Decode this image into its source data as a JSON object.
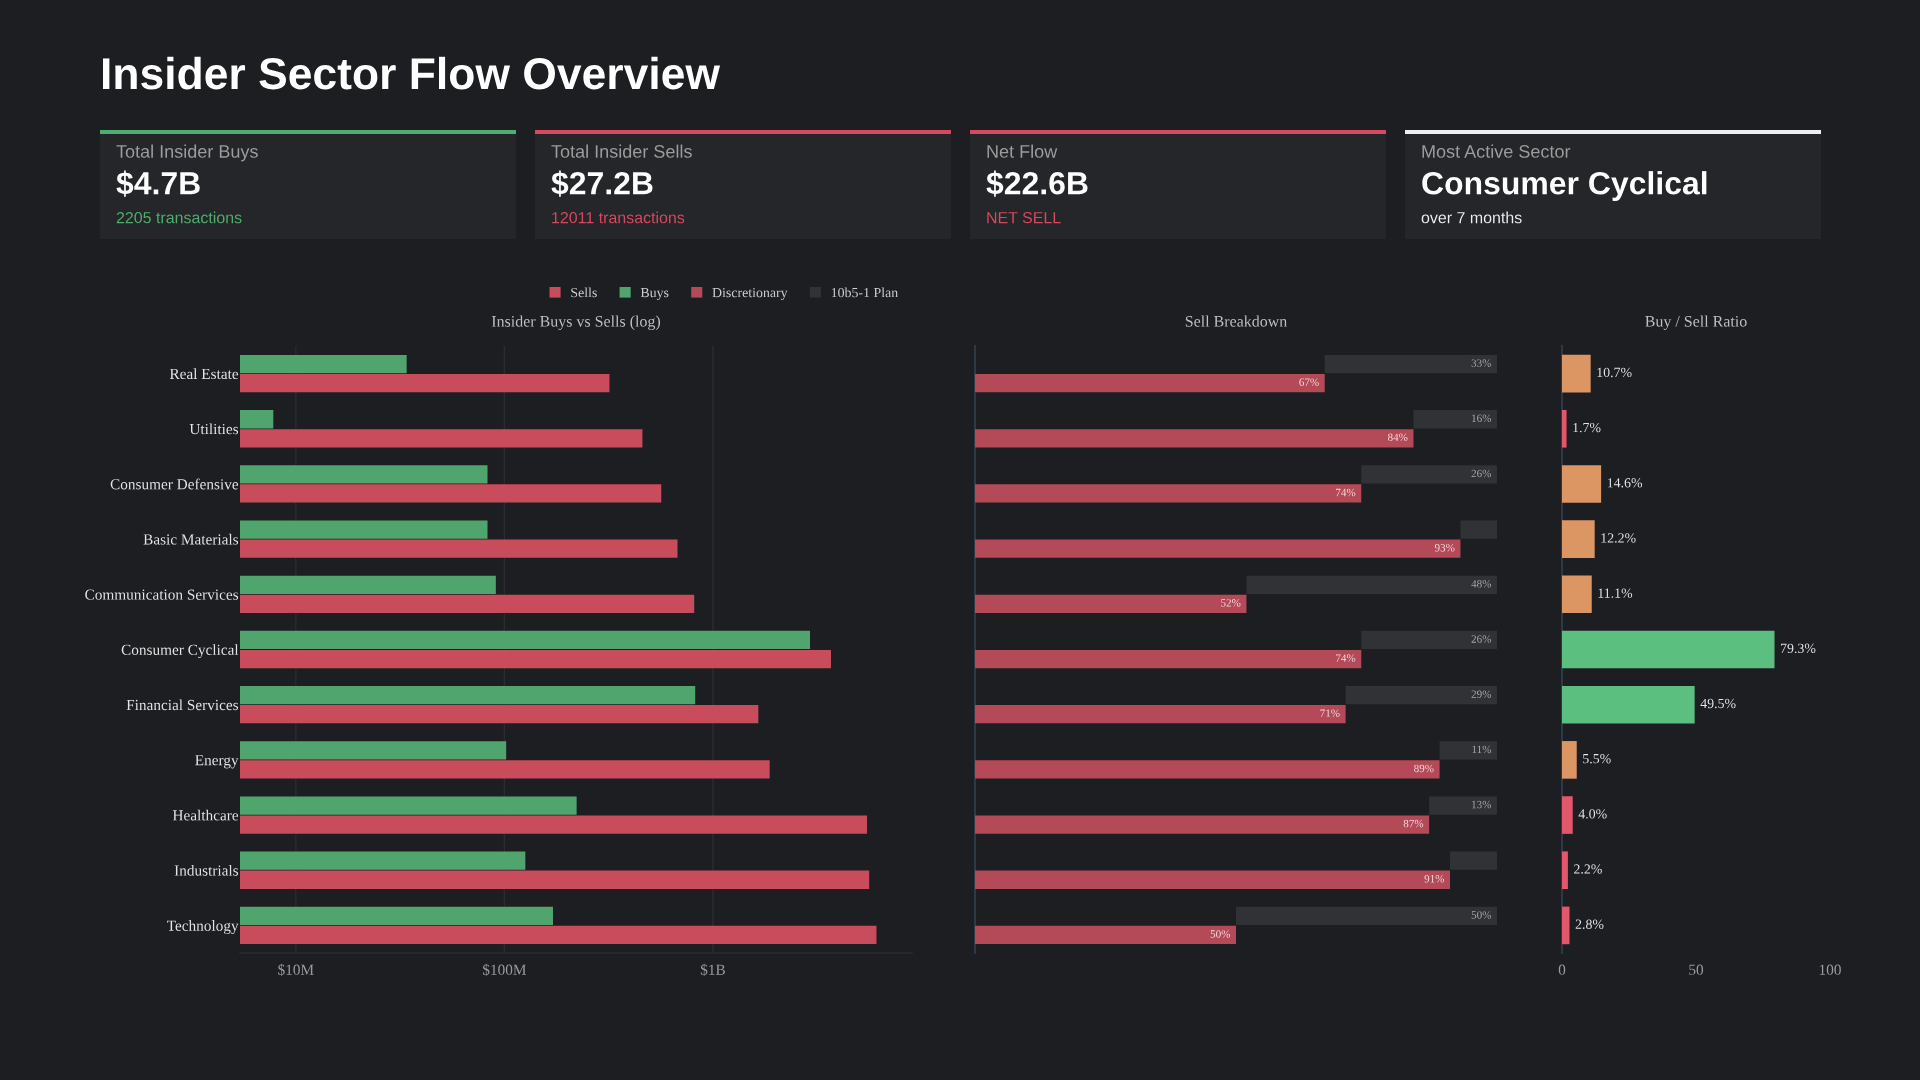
{
  "chart_data": [
    {
      "type": "other",
      "title": "Insider Sector Flow Overview"
    },
    {
      "type": "other",
      "title": "Total Insider Buys",
      "annotations": [
        "$4.7B",
        "2205 transactions"
      ],
      "color": "#4fae6e"
    },
    {
      "type": "other",
      "title": "Total Insider Sells",
      "annotations": [
        "$27.2B",
        "12011 transactions"
      ],
      "color": "#d8485e"
    },
    {
      "type": "other",
      "title": "Net Flow",
      "annotations": [
        "$22.6B",
        "NET SELL"
      ],
      "color": "#d8485e"
    },
    {
      "type": "other",
      "title": "Most Active Sector",
      "annotations": [
        "Consumer Cyclical",
        "over 7 months"
      ],
      "color": "#eeeeee"
    },
    {
      "type": "bar",
      "orientation": "horizontal",
      "title": "Insider Buys vs Sells (log)",
      "categories": [
        "Real Estate",
        "Utilities",
        "Consumer Defensive",
        "Basic Materials",
        "Communication Services",
        "Consumer Cyclical",
        "Financial Services",
        "Energy",
        "Healthcare",
        "Industrials",
        "Technology"
      ],
      "series": [
        {
          "name": "Sells",
          "color": "#c94c5c",
          "values": [
            319000000,
            459000000,
            565000000,
            676000000,
            813000000,
            3680000000,
            1650000000,
            1870000000,
            5480000000,
            5610000000,
            6080000000
          ]
        },
        {
          "name": "Buys",
          "color": "#50a56f",
          "values": [
            34000000,
            7800000,
            83000000,
            83000000,
            91000000,
            2920000000,
            822000000,
            102000000,
            222000000,
            126000000,
            171000000
          ]
        }
      ],
      "log": "x",
      "xlim": [
        5400000,
        9000000000
      ],
      "xticks": [
        {
          "value": 10000000,
          "label": "$10M"
        },
        {
          "value": 100000000,
          "label": "$100M"
        },
        {
          "value": 1000000000,
          "label": "$1B"
        }
      ],
      "grid": "x",
      "legend": "top"
    },
    {
      "type": "bar",
      "orientation": "horizontal",
      "stacked": true,
      "title": "Sell Breakdown",
      "categories": [
        null,
        null,
        null,
        null,
        null,
        null,
        null,
        null,
        null,
        null,
        null
      ],
      "series": [
        {
          "name": "Discretionary",
          "color": "#b44957",
          "values": [
            67,
            84,
            74,
            93,
            52,
            74,
            71,
            89,
            87,
            91,
            50
          ],
          "value_labels": [
            "67%",
            "84%",
            "74%",
            "93%",
            "52%",
            "74%",
            "71%",
            "89%",
            "87%",
            "91%",
            "50%"
          ]
        },
        {
          "name": "10b5-1 Plan",
          "color": "#313236",
          "values": [
            33,
            16,
            26,
            7,
            48,
            26,
            29,
            11,
            13,
            9,
            50
          ],
          "value_labels": [
            "33%",
            "16%",
            "26%",
            null,
            "48%",
            "26%",
            "29%",
            "11%",
            "13%",
            null,
            "50%"
          ]
        }
      ],
      "tick_labels": false,
      "legend": "top"
    },
    {
      "type": "bar",
      "orientation": "horizontal",
      "title": "Buy / Sell Ratio",
      "categories": [
        null,
        null,
        null,
        null,
        null,
        null,
        null,
        null,
        null,
        null,
        null
      ],
      "values": [
        10.7,
        1.7,
        14.6,
        12.2,
        11.1,
        79.3,
        49.5,
        5.5,
        4.0,
        2.2,
        2.8
      ],
      "colors": [
        "#dc9664",
        "#e3566c",
        "#dc9664",
        "#dc9664",
        "#dc9664",
        "#5bbf7f",
        "#5bbf7f",
        "#dc9664",
        "#e3566c",
        "#e3566c",
        "#e3566c"
      ],
      "value_labels": [
        "10.7%",
        "1.7%",
        "14.6%",
        "12.2%",
        "11.1%",
        "79.3%",
        "49.5%",
        "5.5%",
        "4.0%",
        "2.2%",
        "2.8%"
      ],
      "xlim": [
        0,
        100
      ],
      "xticks": [
        0,
        50,
        100
      ],
      "tick_labels": "x"
    }
  ]
}
